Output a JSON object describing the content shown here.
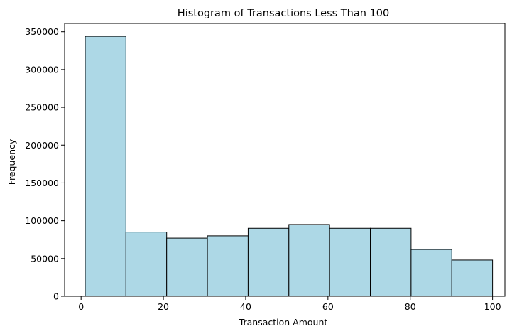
{
  "chart_data": {
    "type": "bar",
    "title": "Histogram of Transactions Less Than 100",
    "xlabel": "Transaction Amount",
    "ylabel": "Frequency",
    "bin_edges": [
      1,
      10.9,
      20.8,
      30.7,
      40.6,
      50.5,
      60.4,
      70.3,
      80.2,
      90.1,
      100
    ],
    "values": [
      344000,
      85000,
      77000,
      80000,
      90000,
      95000,
      90000,
      90000,
      62000,
      48000
    ],
    "xlim": [
      -4,
      103
    ],
    "ylim": [
      0,
      361000
    ],
    "x_ticks": [
      0,
      20,
      40,
      60,
      80,
      100
    ],
    "y_ticks": [
      0,
      50000,
      100000,
      150000,
      200000,
      250000,
      300000,
      350000
    ],
    "grid": false,
    "legend": null,
    "colors": {
      "bar_fill": "#add8e6",
      "bar_edge": "#000000",
      "axes": "#000000"
    }
  }
}
